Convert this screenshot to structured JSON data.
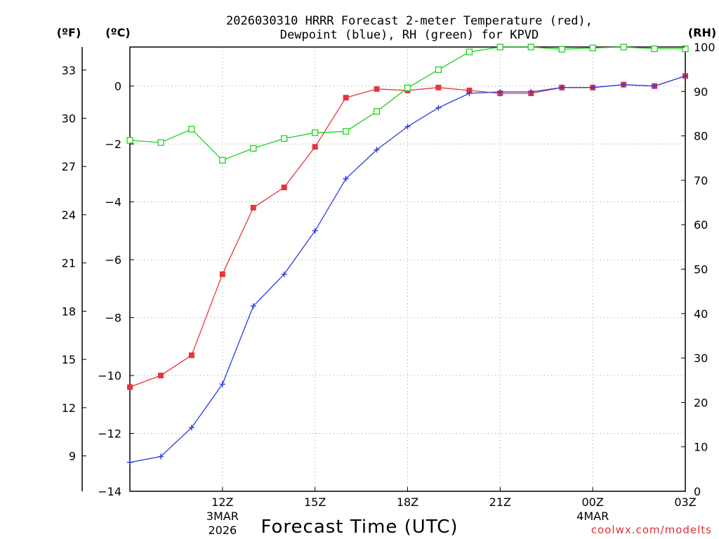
{
  "chart_data": {
    "type": "line",
    "title_line1": "2026030310 HRRR Forecast 2-meter Temperature (red),",
    "title_line2": "Dewpoint (blue), RH (green) for KPVD",
    "xlabel": "Forecast Time (UTC)",
    "credit": "coolwx.com/modelts",
    "unit_f": "(ºF)",
    "unit_c": "(ºC)",
    "unit_rh": "(RH)",
    "x_hours": [
      9,
      10,
      11,
      12,
      13,
      14,
      15,
      16,
      17,
      18,
      19,
      20,
      21,
      22,
      23,
      24,
      25,
      26,
      27
    ],
    "x_range": [
      9,
      27
    ],
    "x_ticks": [
      {
        "hour": 12,
        "label": "12Z",
        "sub1": "3MAR",
        "sub2": "2026"
      },
      {
        "hour": 15,
        "label": "15Z",
        "sub1": "",
        "sub2": ""
      },
      {
        "hour": 18,
        "label": "18Z",
        "sub1": "",
        "sub2": ""
      },
      {
        "hour": 21,
        "label": "21Z",
        "sub1": "",
        "sub2": ""
      },
      {
        "hour": 24,
        "label": "00Z",
        "sub1": "4MAR",
        "sub2": ""
      },
      {
        "hour": 27,
        "label": "03Z",
        "sub1": "",
        "sub2": ""
      }
    ],
    "y_celsius_range": [
      -14.0,
      1.35
    ],
    "y_celsius_ticks": [
      "0",
      "−2",
      "−4",
      "−6",
      "−8",
      "−10",
      "−12",
      "−14"
    ],
    "y_celsius_tick_values": [
      0,
      -2,
      -4,
      -6,
      -8,
      -10,
      -12,
      -14
    ],
    "y_fahrenheit_ticks": [
      "33",
      "30",
      "27",
      "24",
      "21",
      "18",
      "15",
      "12",
      "9"
    ],
    "y_fahrenheit_tick_values": [
      33,
      30,
      27,
      24,
      21,
      18,
      15,
      12,
      9
    ],
    "y_rh_range": [
      0,
      100
    ],
    "y_rh_ticks": [
      "100",
      "90",
      "80",
      "70",
      "60",
      "50",
      "40",
      "30",
      "20",
      "10",
      "0"
    ],
    "y_rh_tick_values": [
      100,
      90,
      80,
      70,
      60,
      50,
      40,
      30,
      20,
      10,
      0
    ],
    "series": [
      {
        "name": "Temperature",
        "axis": "celsius",
        "color": "#e8343c",
        "marker": "filled-square",
        "values": [
          -10.4,
          -10.0,
          -9.3,
          -6.5,
          -4.2,
          -3.5,
          -2.1,
          -0.4,
          -0.1,
          -0.15,
          -0.05,
          -0.15,
          -0.25,
          -0.25,
          -0.05,
          -0.05,
          0.05,
          0.0,
          0.35
        ]
      },
      {
        "name": "Dewpoint",
        "axis": "celsius",
        "color": "#2a3ee0",
        "marker": "plus",
        "values": [
          -13.0,
          -12.8,
          -11.8,
          -10.3,
          -7.6,
          -6.5,
          -5.0,
          -3.2,
          -2.2,
          -1.4,
          -0.75,
          -0.25,
          -0.2,
          -0.2,
          -0.05,
          -0.05,
          0.05,
          0.0,
          0.35
        ]
      },
      {
        "name": "RH",
        "axis": "rh",
        "color": "#1ed21e",
        "marker": "open-square",
        "values": [
          79,
          78.5,
          81.5,
          74.5,
          77.2,
          79.4,
          80.7,
          81,
          85.5,
          90.8,
          94.9,
          98.9,
          100,
          100,
          99.5,
          99.8,
          100,
          99.6,
          99.6
        ]
      }
    ]
  }
}
